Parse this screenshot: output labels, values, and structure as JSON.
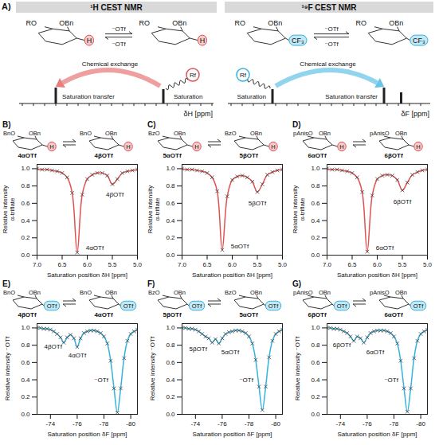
{
  "scheme": {
    "panel_label": "A)",
    "halves": [
      {
        "title": "¹H CEST NMR",
        "groups": [
          "RO",
          "OBn"
        ],
        "observed": "H",
        "ion": "⁻OTf",
        "exchange": "Chemical exchange",
        "transfer": "Saturation transfer",
        "saturation": "Saturation",
        "rf": "Rf",
        "axis": "δH [ppm]",
        "color": "#e05252"
      },
      {
        "title": "¹⁹F CEST NMR",
        "groups": [
          "RO",
          "OBn"
        ],
        "observed": "CF₃",
        "ion": "⁻OTf",
        "exchange": "Chemical exchange",
        "transfer": "Saturation transfer",
        "saturation": "Saturation",
        "rf": "Rf",
        "axis": "δF [ppm]",
        "color": "#35b2de"
      }
    ]
  },
  "chart_data": [
    {
      "type": "line",
      "panel_label": "B)",
      "reaction": {
        "groups": [
          "BnO",
          "OBn"
        ],
        "observed": "H",
        "left": "4αOTf",
        "right": "4βOTf"
      },
      "x": [
        7.0,
        6.9,
        6.8,
        6.7,
        6.6,
        6.5,
        6.4,
        6.3,
        6.2,
        6.1,
        6.0,
        5.9,
        5.8,
        5.7,
        5.6,
        5.5,
        5.4,
        5.3,
        5.2,
        5.1,
        5.0
      ],
      "series": [
        {
          "values": [
            1.0,
            0.99,
            0.99,
            0.98,
            0.97,
            0.95,
            0.9,
            0.72,
            0.03,
            0.7,
            0.88,
            0.93,
            0.95,
            0.95,
            0.92,
            0.82,
            0.88,
            0.95,
            0.97,
            0.98,
            0.99
          ],
          "color": "#e05252",
          "marker": "x",
          "line_style": "solid"
        }
      ],
      "xlim": [
        7.0,
        5.0
      ],
      "ylim": [
        0,
        1.05
      ],
      "xticks": [
        {
          "value": 7,
          "label": "7.0"
        },
        6.5,
        {
          "value": 6,
          "label": "6.0"
        },
        5.5,
        {
          "value": 5,
          "label": "5.0"
        }
      ],
      "yticks": [
        {
          "value": 0,
          "label": "0.0"
        },
        0.2,
        0.4,
        0.6,
        0.8,
        {
          "value": 1,
          "label": "1.0"
        }
      ],
      "x_label": "Saturation position δH [ppm]",
      "y_label": "Relative intensity α-triflate",
      "annotations": [
        {
          "text": "4αOTf",
          "x": 5.85,
          "y": 0.08
        },
        {
          "text": "4βOTf",
          "x": 5.45,
          "y": 0.7
        }
      ]
    },
    {
      "type": "line",
      "panel_label": "C)",
      "reaction": {
        "groups": [
          "BzO",
          "OBn"
        ],
        "observed": "H",
        "left": "5αOTf",
        "right": "5βOTf"
      },
      "x": [
        7.0,
        6.9,
        6.8,
        6.7,
        6.6,
        6.5,
        6.4,
        6.3,
        6.2,
        6.1,
        6.0,
        5.9,
        5.8,
        5.7,
        5.6,
        5.5,
        5.4,
        5.3,
        5.2,
        5.1,
        5.0
      ],
      "series": [
        {
          "values": [
            1.0,
            0.99,
            0.99,
            0.98,
            0.97,
            0.95,
            0.9,
            0.74,
            0.06,
            0.68,
            0.87,
            0.91,
            0.92,
            0.9,
            0.85,
            0.73,
            0.82,
            0.93,
            0.96,
            0.98,
            0.99
          ],
          "color": "#e05252",
          "marker": "x",
          "line_style": "solid"
        }
      ],
      "xlim": [
        7.0,
        5.0
      ],
      "ylim": [
        0,
        1.05
      ],
      "xticks": [
        {
          "value": 7,
          "label": "7.0"
        },
        6.5,
        {
          "value": 6,
          "label": "6.0"
        },
        5.5,
        {
          "value": 5,
          "label": "5.0"
        }
      ],
      "yticks": [
        {
          "value": 0,
          "label": "0.0"
        },
        0.2,
        0.4,
        0.6,
        0.8,
        {
          "value": 1,
          "label": "1.0"
        }
      ],
      "x_label": "Saturation position δH [ppm]",
      "y_label": "Relative intensity α-triflate",
      "annotations": [
        {
          "text": "5αOTf",
          "x": 5.85,
          "y": 0.1
        },
        {
          "text": "5βOTf",
          "x": 5.5,
          "y": 0.6
        }
      ]
    },
    {
      "type": "line",
      "panel_label": "D)",
      "reaction": {
        "groups": [
          "pAnisO",
          "OBn"
        ],
        "observed": "H",
        "left": "6αOTf",
        "right": "6βOTf"
      },
      "x": [
        7.0,
        6.9,
        6.8,
        6.7,
        6.6,
        6.5,
        6.4,
        6.3,
        6.2,
        6.1,
        6.0,
        5.9,
        5.8,
        5.7,
        5.6,
        5.5,
        5.4,
        5.3,
        5.2,
        5.1,
        5.0
      ],
      "series": [
        {
          "values": [
            1.0,
            0.99,
            0.99,
            0.98,
            0.97,
            0.95,
            0.9,
            0.73,
            0.04,
            0.69,
            0.88,
            0.92,
            0.93,
            0.92,
            0.87,
            0.75,
            0.84,
            0.93,
            0.96,
            0.98,
            0.99
          ],
          "color": "#e05252",
          "marker": "x",
          "line_style": "solid"
        }
      ],
      "xlim": [
        7.0,
        5.0
      ],
      "ylim": [
        0,
        1.05
      ],
      "xticks": [
        {
          "value": 7,
          "label": "7.0"
        },
        6.5,
        {
          "value": 6,
          "label": "6.0"
        },
        5.5,
        {
          "value": 5,
          "label": "5.0"
        }
      ],
      "yticks": [
        {
          "value": 0,
          "label": "0.0"
        },
        0.2,
        0.4,
        0.6,
        0.8,
        {
          "value": 1,
          "label": "1.0"
        }
      ],
      "x_label": "Saturation position δH [ppm]",
      "y_label": "Relative intensity α-triflate",
      "annotations": [
        {
          "text": "6αOTf",
          "x": 5.85,
          "y": 0.08
        },
        {
          "text": "6βOTf",
          "x": 5.5,
          "y": 0.62
        }
      ]
    },
    {
      "type": "line",
      "panel_label": "E)",
      "reaction": {
        "groups": [
          "BnO",
          "OBn"
        ],
        "observed": "OTf",
        "left": "4βOTf",
        "right": "4αOTf"
      },
      "x": [
        -73,
        -73.25,
        -73.5,
        -73.75,
        -74,
        -74.25,
        -74.5,
        -74.75,
        -75,
        -75.25,
        -75.5,
        -75.75,
        -76,
        -76.25,
        -76.5,
        -76.75,
        -77,
        -77.25,
        -77.5,
        -77.75,
        -78,
        -78.25,
        -78.5,
        -78.75,
        -79,
        -79.25,
        -79.5,
        -79.75,
        -80,
        -80.25,
        -80.5
      ],
      "series": [
        {
          "values": [
            1.0,
            1.0,
            0.99,
            0.99,
            0.98,
            0.96,
            0.93,
            0.89,
            0.83,
            0.89,
            0.92,
            0.88,
            0.78,
            0.88,
            0.94,
            0.96,
            0.97,
            0.97,
            0.96,
            0.94,
            0.9,
            0.82,
            0.62,
            0.3,
            0.02,
            0.3,
            0.65,
            0.85,
            0.93,
            0.96,
            0.98
          ],
          "color": "#35b2de",
          "marker": "x",
          "line_style": "solid"
        }
      ],
      "xlim": [
        -73,
        -80.5
      ],
      "ylim": [
        0,
        1.05
      ],
      "xticks": [
        -74,
        -76,
        -78,
        -80
      ],
      "yticks": [
        {
          "value": 0,
          "label": "0.0"
        },
        0.2,
        0.4,
        0.6,
        0.8,
        {
          "value": 1,
          "label": "1.0"
        }
      ],
      "x_label": "Saturation position δF [ppm]",
      "y_label": "Relative intensity ⁻OTf",
      "annotations": [
        {
          "text": "4βOTf",
          "x": -74.2,
          "y": 0.78
        },
        {
          "text": "4αOTf",
          "x": -76.0,
          "y": 0.68
        },
        {
          "text": "⁻OTf",
          "x": -77.8,
          "y": 0.4
        }
      ]
    },
    {
      "type": "line",
      "panel_label": "F)",
      "reaction": {
        "groups": [
          "BzO",
          "OBn"
        ],
        "observed": "OTf",
        "left": "5βOTf",
        "right": "5αOTf"
      },
      "x": [
        -73,
        -73.25,
        -73.5,
        -73.75,
        -74,
        -74.25,
        -74.5,
        -74.75,
        -75,
        -75.25,
        -75.5,
        -75.75,
        -76,
        -76.25,
        -76.5,
        -76.75,
        -77,
        -77.25,
        -77.5,
        -77.75,
        -78,
        -78.25,
        -78.5,
        -78.75,
        -79,
        -79.25,
        -79.5,
        -79.75,
        -80,
        -80.25,
        -80.5
      ],
      "series": [
        {
          "values": [
            1.0,
            1.0,
            0.99,
            0.99,
            0.98,
            0.96,
            0.93,
            0.9,
            0.88,
            0.83,
            0.87,
            0.82,
            0.88,
            0.93,
            0.95,
            0.96,
            0.97,
            0.97,
            0.96,
            0.94,
            0.9,
            0.82,
            0.63,
            0.32,
            0.05,
            0.32,
            0.66,
            0.85,
            0.93,
            0.96,
            0.98
          ],
          "color": "#35b2de",
          "marker": "x",
          "line_style": "solid"
        }
      ],
      "xlim": [
        -73,
        -80.5
      ],
      "ylim": [
        0,
        1.05
      ],
      "xticks": [
        -74,
        -76,
        -78,
        -80
      ],
      "yticks": [
        {
          "value": 0,
          "label": "0.0"
        },
        0.2,
        0.4,
        0.6,
        0.8,
        {
          "value": 1,
          "label": "1.0"
        }
      ],
      "x_label": "Saturation position δF [ppm]",
      "y_label": "Relative intensity ⁻OTf",
      "annotations": [
        {
          "text": "5βOTf",
          "x": -74.2,
          "y": 0.76
        },
        {
          "text": "5αOTf",
          "x": -76.6,
          "y": 0.72
        },
        {
          "text": "⁻OTf",
          "x": -77.8,
          "y": 0.4
        }
      ]
    },
    {
      "type": "line",
      "panel_label": "G)",
      "reaction": {
        "groups": [
          "pAnisO",
          "OBn"
        ],
        "observed": "OTf",
        "left": "6βOTf",
        "right": "6αOTf"
      },
      "x": [
        -73,
        -73.25,
        -73.5,
        -73.75,
        -74,
        -74.25,
        -74.5,
        -74.75,
        -75,
        -75.25,
        -75.5,
        -75.75,
        -76,
        -76.25,
        -76.5,
        -76.75,
        -77,
        -77.25,
        -77.5,
        -77.75,
        -78,
        -78.25,
        -78.5,
        -78.75,
        -79,
        -79.25,
        -79.5,
        -79.75,
        -80,
        -80.25,
        -80.5
      ],
      "series": [
        {
          "values": [
            1.0,
            1.0,
            0.99,
            0.99,
            0.98,
            0.96,
            0.94,
            0.9,
            0.85,
            0.9,
            0.88,
            0.83,
            0.89,
            0.94,
            0.96,
            0.97,
            0.97,
            0.97,
            0.96,
            0.94,
            0.9,
            0.82,
            0.62,
            0.3,
            0.03,
            0.3,
            0.65,
            0.85,
            0.93,
            0.96,
            0.98
          ],
          "color": "#35b2de",
          "marker": "x",
          "line_style": "solid"
        }
      ],
      "xlim": [
        -73,
        -80.5
      ],
      "ylim": [
        0,
        1.05
      ],
      "xticks": [
        -74,
        -76,
        -78,
        -80
      ],
      "yticks": [
        {
          "value": 0,
          "label": "0.0"
        },
        0.2,
        0.4,
        0.6,
        0.8,
        {
          "value": 1,
          "label": "1.0"
        }
      ],
      "x_label": "Saturation position δF [ppm]",
      "y_label": "Relative intensity ⁻OTf",
      "annotations": [
        {
          "text": "6βOTf",
          "x": -74.1,
          "y": 0.8
        },
        {
          "text": "6αOTf",
          "x": -76.6,
          "y": 0.72
        },
        {
          "text": "⁻OTf",
          "x": -77.8,
          "y": 0.4
        }
      ]
    }
  ]
}
